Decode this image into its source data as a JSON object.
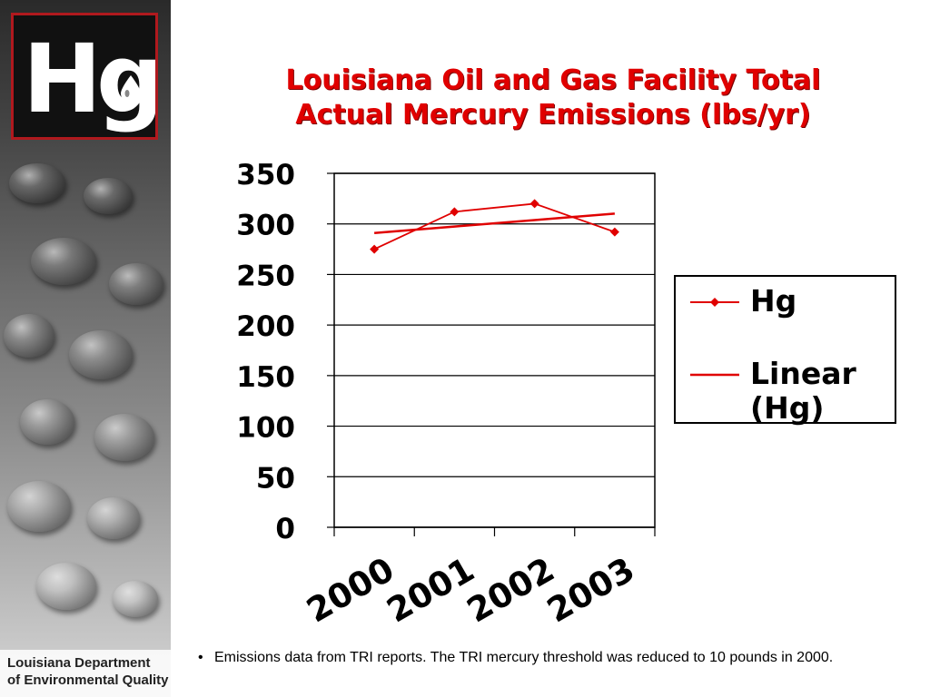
{
  "slide": {
    "logo_text": "Hg",
    "agency_line1": "Louisiana Department",
    "agency_line2": "of Environmental Quality",
    "title_line1": "Louisiana Oil and Gas Facility Total",
    "title_line2": "Actual Mercury Emissions (lbs/yr)",
    "footnote": "Emissions data from TRI reports. The TRI mercury threshold was reduced to 10 pounds in 2000."
  },
  "colors": {
    "series": "#e00000",
    "title": "#e00000",
    "logo_border": "#b0191e"
  },
  "chart_data": {
    "type": "line",
    "categories": [
      "2000",
      "2001",
      "2002",
      "2003"
    ],
    "series": [
      {
        "name": "Hg",
        "values": [
          275,
          312,
          320,
          292
        ],
        "marker": "diamond"
      },
      {
        "name": "Linear (Hg)",
        "values": [
          291,
          297.4,
          303.8,
          310.2
        ],
        "trendline": true
      }
    ],
    "ylim": [
      0,
      350
    ],
    "yticks": [
      "0",
      "50",
      "100",
      "150",
      "200",
      "250",
      "300",
      "350"
    ],
    "grid": true,
    "legend": "right"
  }
}
